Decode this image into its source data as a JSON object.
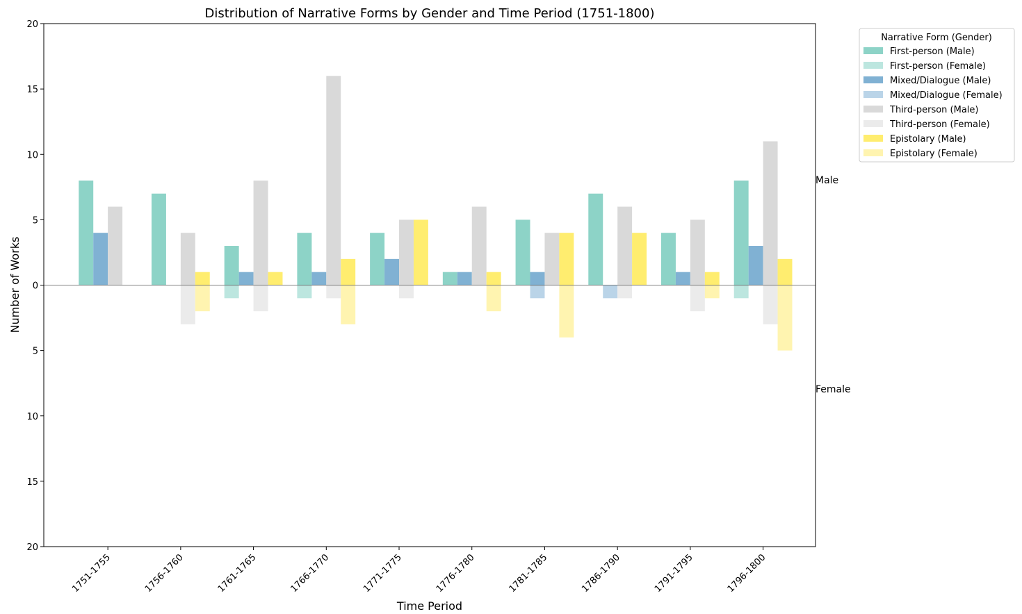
{
  "chart_data": {
    "type": "bar",
    "title": "Distribution of Narrative Forms by Gender and Time Period (1751-1800)",
    "xlabel": "Time Period",
    "ylabel": "Number of Works",
    "ylim": [
      -20,
      20
    ],
    "yticks": [
      -20,
      -15,
      -10,
      -5,
      0,
      5,
      10,
      15,
      20
    ],
    "ytick_labels": [
      "20",
      "15",
      "10",
      "5",
      "0",
      "5",
      "10",
      "15",
      "20"
    ],
    "side_labels": {
      "top": "Male",
      "bottom": "Female"
    },
    "categories": [
      "1751-1755",
      "1756-1760",
      "1761-1765",
      "1766-1770",
      "1771-1775",
      "1776-1780",
      "1781-1785",
      "1786-1790",
      "1791-1795",
      "1796-1800"
    ],
    "legend_title": "Narrative Form (Gender)",
    "legend_position": "upper right, outside plot",
    "series": [
      {
        "name": "First-person (Male)",
        "form": "First-person",
        "gender": "Male",
        "color": "#8dd3c7",
        "values": [
          8,
          7,
          3,
          4,
          4,
          1,
          5,
          7,
          4,
          8
        ]
      },
      {
        "name": "First-person (Female)",
        "form": "First-person",
        "gender": "Female",
        "color": "#bce6df",
        "values": [
          0,
          0,
          1,
          1,
          0,
          0,
          0,
          0,
          0,
          1
        ]
      },
      {
        "name": "Mixed/Dialogue (Male)",
        "form": "Mixed/Dialogue",
        "gender": "Male",
        "color": "#80b1d3",
        "values": [
          4,
          0,
          1,
          1,
          2,
          1,
          1,
          0,
          1,
          3
        ]
      },
      {
        "name": "Mixed/Dialogue (Female)",
        "form": "Mixed/Dialogue",
        "gender": "Female",
        "color": "#bad4e8",
        "values": [
          0,
          0,
          0,
          0,
          0,
          0,
          1,
          1,
          0,
          0
        ]
      },
      {
        "name": "Third-person (Male)",
        "form": "Third-person",
        "gender": "Male",
        "color": "#d9d9d9",
        "values": [
          6,
          4,
          8,
          16,
          5,
          6,
          4,
          6,
          5,
          11
        ]
      },
      {
        "name": "Third-person (Female)",
        "form": "Third-person",
        "gender": "Female",
        "color": "#ebebeb",
        "values": [
          0,
          3,
          2,
          1,
          1,
          0,
          0,
          1,
          2,
          3
        ]
      },
      {
        "name": "Epistolary (Male)",
        "form": "Epistolary",
        "gender": "Male",
        "color": "#ffed6f",
        "values": [
          0,
          1,
          1,
          2,
          5,
          1,
          4,
          4,
          1,
          2
        ]
      },
      {
        "name": "Epistolary (Female)",
        "form": "Epistolary",
        "gender": "Female",
        "color": "#fff4b0",
        "values": [
          0,
          2,
          0,
          3,
          0,
          2,
          4,
          0,
          1,
          5
        ]
      }
    ]
  }
}
